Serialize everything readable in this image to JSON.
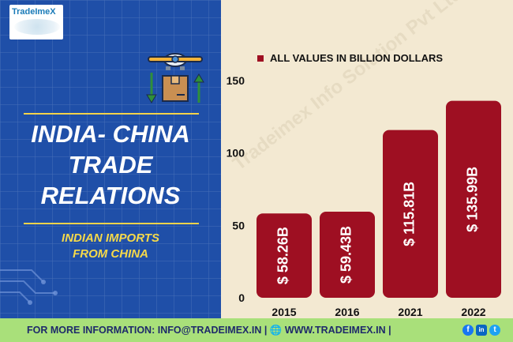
{
  "logo": {
    "text": "TradeImeX"
  },
  "left_panel": {
    "title_lines": [
      "INDIA- CHINA",
      "TRADE",
      "RELATIONS"
    ],
    "subtitle_lines": [
      "INDIAN IMPORTS",
      "FROM CHINA"
    ]
  },
  "watermark": "Tradeimex Info Solution Pvt Ltd",
  "footer": {
    "text": "FOR MORE INFORMATION: INFO@TRADEIMEX.IN | 🌐 WWW.TRADEIMEX.IN |",
    "social": [
      "f",
      "in",
      "t"
    ]
  },
  "colors": {
    "bar": "#9e0f22",
    "panel": "#1f4fa8",
    "accent": "#f3d24a",
    "footer": "#a9e07a"
  },
  "icons": [
    "airplane-icon",
    "package-icon",
    "arrow-up-icon",
    "arrow-down-icon",
    "globe-icon",
    "facebook-icon",
    "linkedin-icon",
    "twitter-icon"
  ],
  "chart_data": {
    "type": "bar",
    "categories": [
      "2015",
      "2016",
      "2021",
      "2022"
    ],
    "values": [
      58.26,
      59.43,
      115.81,
      135.99
    ],
    "data_labels": [
      "$ 58.26B",
      "$ 59.43B",
      "$ 115.81B",
      "$ 135.99B"
    ],
    "legend": [
      "ALL VALUES IN BILLION DOLLARS"
    ],
    "legend_position": "top",
    "y_ticks": [
      0,
      50,
      100,
      150
    ],
    "ylim": [
      0,
      150
    ],
    "grid": false
  }
}
